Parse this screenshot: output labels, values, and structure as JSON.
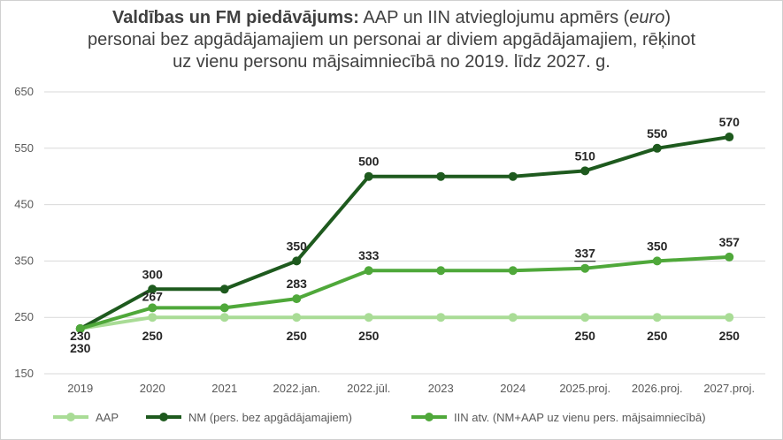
{
  "chart_data": {
    "type": "line",
    "title": {
      "bold": "Valdības un FM piedāvājums:",
      "part1": " AAP un IIN  atvieglojumu apmērs (",
      "italic": "euro",
      "part2": ")",
      "line2": "personai bez apgādājamajiem un personai ar diviem apgādājamajiem, rēķinot",
      "line3": "uz vienu personu mājsaimniecībā no 2019. līdz 2027. g."
    },
    "categories": [
      "2019",
      "2020",
      "2021",
      "2022.jan.",
      "2022.jūl.",
      "2023",
      "2024",
      "2025.proj.",
      "2026.proj.",
      "2027.proj."
    ],
    "ylim": [
      150,
      650
    ],
    "yticks": [
      "150",
      "250",
      "350",
      "450",
      "550",
      "650"
    ],
    "grid": true,
    "legend_position": "bottom",
    "series": [
      {
        "name": "AAP",
        "color": "#a9dc96",
        "values": [
          230,
          250,
          250,
          250,
          250,
          250,
          250,
          250,
          250,
          250
        ],
        "labels": [
          "230",
          "250",
          "",
          "250",
          "250",
          "",
          "",
          "250",
          "250",
          "250"
        ]
      },
      {
        "name": "NM (pers. bez apgādājamajiem)",
        "color": "#1e5a1e",
        "values": [
          230,
          300,
          300,
          350,
          500,
          500,
          500,
          510,
          550,
          570
        ],
        "labels": [
          "230",
          "300",
          "",
          "350",
          "500",
          "",
          "",
          "510",
          "550",
          "570"
        ]
      },
      {
        "name": "IIN atv. (NM+AAP uz vienu pers. mājsaimniecībā)",
        "color": "#4fa83a",
        "values": [
          230,
          267,
          267,
          283,
          333,
          333,
          333,
          337,
          350,
          357
        ],
        "labels": [
          "",
          "267",
          "",
          "283",
          "333",
          "",
          "",
          "337",
          "350",
          "357"
        ]
      }
    ]
  }
}
